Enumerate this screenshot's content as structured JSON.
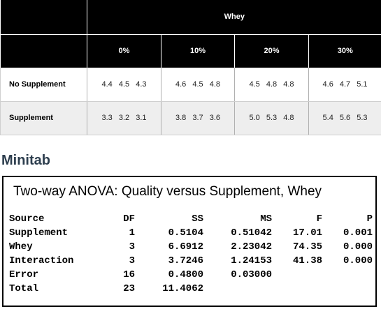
{
  "data_table": {
    "top_header": "Whey",
    "whey_levels": [
      "0%",
      "10%",
      "20%",
      "30%"
    ],
    "rows": [
      {
        "label": "No Supplement",
        "cells": [
          "4.4  4.5  4.3",
          "4.6  4.5  4.8",
          "4.5  4.8  4.8",
          "4.6  4.7  5.1"
        ]
      },
      {
        "label": "Supplement",
        "cells": [
          "3.3  3.2  3.1",
          "3.8  3.7  3.6",
          "5.0  5.3  4.8",
          "5.4  5.6  5.3"
        ]
      }
    ]
  },
  "section_heading": "Minitab",
  "anova": {
    "title": "Two-way ANOVA: Quality versus Supplement, Whey",
    "columns": [
      "Source",
      "DF",
      "SS",
      "MS",
      "F",
      "P"
    ],
    "rows": [
      {
        "source": "Supplement",
        "df": "1",
        "ss": "0.5104",
        "ms": "0.51042",
        "f": "17.01",
        "p": "0.001"
      },
      {
        "source": "Whey",
        "df": "3",
        "ss": "6.6912",
        "ms": "2.23042",
        "f": "74.35",
        "p": "0.000"
      },
      {
        "source": "Interaction",
        "df": "3",
        "ss": "3.7246",
        "ms": "1.24153",
        "f": "41.38",
        "p": "0.000"
      },
      {
        "source": "Error",
        "df": "16",
        "ss": "0.4800",
        "ms": "0.03000",
        "f": "",
        "p": ""
      },
      {
        "source": "Total",
        "df": "23",
        "ss": "11.4062",
        "ms": "",
        "f": "",
        "p": ""
      }
    ]
  },
  "colors": {
    "header_bg": "#000000",
    "header_text": "#ffffff",
    "alt_row_bg": "#eeeeee",
    "heading_color": "#2d3e4e"
  }
}
